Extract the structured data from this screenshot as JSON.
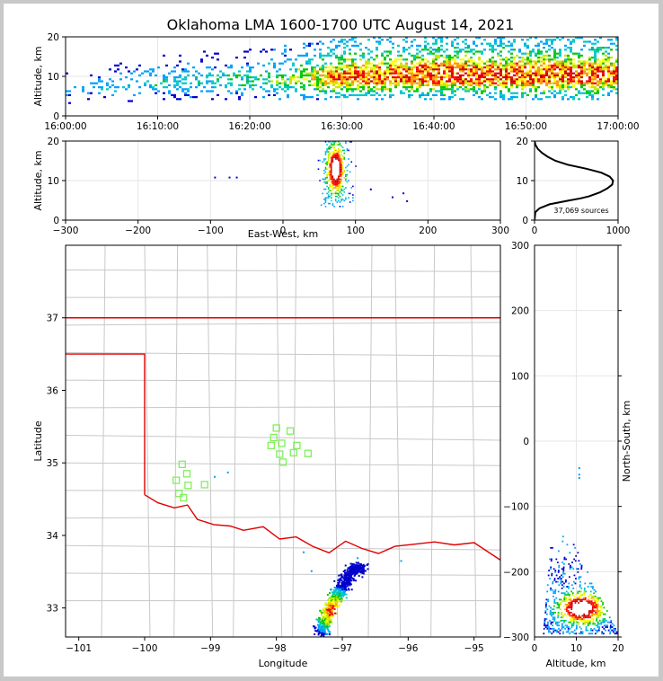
{
  "figure": {
    "title": "Oklahoma LMA 1600-1700 UTC August 14, 2021",
    "source_count_label": "37,069 sources"
  },
  "colors": {
    "background": "#ffffff",
    "frame": "#c8c8c8",
    "state_border": "#e00000",
    "county_lines": "#c8c8c8",
    "grid": "#e6e6e6",
    "stations": "#7ff05a",
    "density_scale": [
      "#0000cc",
      "#00a0ff",
      "#00c8c8",
      "#00c800",
      "#c8e600",
      "#ffff00",
      "#ff9600",
      "#ff0000",
      "#c80000",
      "#ffffff"
    ]
  },
  "chart_data": [
    {
      "id": "time_height",
      "type": "heatmap",
      "title": "",
      "xlabel": "",
      "ylabel": "Altitude, km",
      "xlim": [
        "16:00:00",
        "17:00:00"
      ],
      "ylim": [
        0,
        20
      ],
      "xticks": [
        "16:00:00",
        "16:10:00",
        "16:20:00",
        "16:30:00",
        "16:40:00",
        "16:50:00",
        "17:00:00"
      ],
      "yticks": [
        0,
        10,
        20
      ],
      "grid": true,
      "description_points": {
        "x": [
          "16:00",
          "16:10",
          "16:20",
          "16:25",
          "16:30",
          "16:40",
          "16:50",
          "17:00"
        ],
        "core_altitude_km": [
          6,
          8,
          8.5,
          9,
          9.5,
          10,
          10,
          10
        ],
        "bottom_km": [
          3,
          4,
          4,
          4,
          4,
          4,
          4,
          4
        ],
        "top_km": [
          11,
          16,
          17,
          18,
          20,
          20,
          20,
          20
        ],
        "relative_density": [
          0.15,
          0.3,
          0.35,
          0.5,
          0.85,
          0.95,
          0.95,
          0.9
        ]
      }
    },
    {
      "id": "ew_height",
      "type": "heatmap",
      "xlabel": "East-West, km",
      "ylabel": "Altitude, km",
      "xlim": [
        -300,
        300
      ],
      "ylim": [
        0,
        20
      ],
      "xticks": [
        -300,
        -200,
        -100,
        0,
        100,
        200,
        300
      ],
      "yticks": [
        0,
        10,
        20
      ],
      "grid": true,
      "cluster": {
        "x_center_km": 72,
        "x_range_km": [
          55,
          100
        ],
        "core_altitude_km": 13,
        "top_km": 20,
        "bottom_km": 3
      },
      "outliers": [
        {
          "x_km": -95,
          "alt_km": 11
        },
        {
          "x_km": -75,
          "alt_km": 11
        },
        {
          "x_km": -65,
          "alt_km": 11
        },
        {
          "x_km": 150,
          "alt_km": 6
        },
        {
          "x_km": 165,
          "alt_km": 7
        },
        {
          "x_km": 170,
          "alt_km": 5
        },
        {
          "x_km": 120,
          "alt_km": 8
        }
      ]
    },
    {
      "id": "altitude_histogram",
      "type": "line",
      "xlabel": "",
      "ylabel": "",
      "xlim": [
        0,
        1000
      ],
      "ylim": [
        0,
        20
      ],
      "xticks": [
        0,
        1000
      ],
      "yticks": [
        0,
        10,
        20
      ],
      "grid": true,
      "series": [
        {
          "altitude_km": [
            0,
            2,
            3,
            4,
            5,
            5.5,
            6,
            7,
            8,
            9,
            10,
            11,
            12,
            13,
            14,
            15,
            16,
            17,
            18,
            19,
            20
          ],
          "count": [
            0,
            10,
            60,
            180,
            420,
            550,
            650,
            780,
            870,
            930,
            940,
            900,
            800,
            620,
            400,
            250,
            160,
            90,
            40,
            12,
            0
          ]
        }
      ]
    },
    {
      "id": "plan_view",
      "type": "scatter",
      "xlabel": "Longitude",
      "ylabel": "Latitude",
      "xlim": [
        -101.2,
        -94.6
      ],
      "ylim": [
        32.6,
        38.0
      ],
      "xticks": [
        -101,
        -100,
        -99,
        -98,
        -97,
        -96,
        -95
      ],
      "yticks": [
        33,
        34,
        35,
        36,
        37
      ],
      "grid": false,
      "stations": [
        {
          "lon": -99.43,
          "lat": 34.98
        },
        {
          "lon": -99.36,
          "lat": 34.85
        },
        {
          "lon": -99.52,
          "lat": 34.76
        },
        {
          "lon": -99.34,
          "lat": 34.69
        },
        {
          "lon": -99.48,
          "lat": 34.58
        },
        {
          "lon": -99.41,
          "lat": 34.52
        },
        {
          "lon": -99.09,
          "lat": 34.7
        },
        {
          "lon": -98.0,
          "lat": 35.48
        },
        {
          "lon": -97.79,
          "lat": 35.44
        },
        {
          "lon": -98.04,
          "lat": 35.35
        },
        {
          "lon": -97.92,
          "lat": 35.27
        },
        {
          "lon": -98.08,
          "lat": 35.24
        },
        {
          "lon": -97.69,
          "lat": 35.24
        },
        {
          "lon": -97.95,
          "lat": 35.12
        },
        {
          "lon": -97.74,
          "lat": 35.14
        },
        {
          "lon": -97.52,
          "lat": 35.13
        },
        {
          "lon": -97.9,
          "lat": 35.01
        }
      ],
      "storm_track": {
        "lon": [
          -97.33,
          -97.25,
          -97.15,
          -97.05,
          -96.95,
          -96.85,
          -96.7
        ],
        "lat": [
          32.65,
          32.9,
          33.1,
          33.25,
          33.4,
          33.55,
          33.55
        ],
        "core": {
          "lon": -97.15,
          "lat": 32.97
        }
      },
      "sparse_sources": [
        {
          "lon": -96.12,
          "lat": 33.66
        },
        {
          "lon": -97.6,
          "lat": 33.78
        },
        {
          "lon": -97.48,
          "lat": 33.52
        },
        {
          "lon": -98.75,
          "lat": 34.88
        },
        {
          "lon": -98.95,
          "lat": 34.82
        },
        {
          "lon": -96.78,
          "lat": 33.7
        }
      ]
    },
    {
      "id": "ns_height",
      "type": "heatmap",
      "xlabel": "Altitude, km",
      "ylabel": "North-South, km",
      "xlim": [
        0,
        20
      ],
      "ylim": [
        -300,
        300
      ],
      "xticks": [
        0,
        10,
        20
      ],
      "yticks": [
        -300,
        -200,
        -100,
        0,
        100,
        200,
        300
      ],
      "grid": true,
      "cluster": {
        "ns_range_km": [
          -295,
          -140
        ],
        "core_ns_km": -255,
        "core_alt_km": 11,
        "alt_range_km": [
          2,
          20
        ]
      },
      "outliers": [
        {
          "alt_km": 10.5,
          "ns_km": -40
        },
        {
          "alt_km": 10.5,
          "ns_km": -50
        },
        {
          "alt_km": 10.5,
          "ns_km": -55
        }
      ]
    }
  ]
}
